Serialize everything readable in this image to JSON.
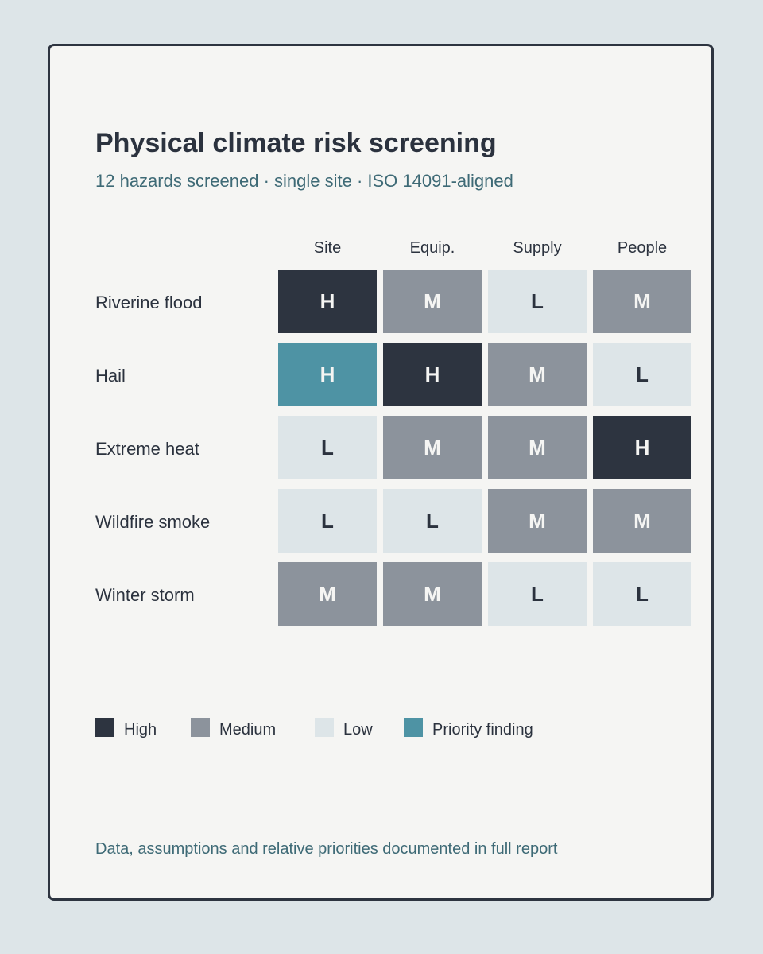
{
  "title": "Physical climate risk screening",
  "subtitle": "12 hazards screened · single site · ISO 14091-aligned",
  "footnote": "Data, assumptions and relative priorities documented in full report",
  "colors": {
    "background": "#dde5e8",
    "card": "#f5f5f3",
    "high": "#2d3440",
    "medium": "#8c939c",
    "low": "#dde5e8",
    "priority": "#4e93a4",
    "text_dark": "#2b323e",
    "text_light": "#f5f5f3",
    "text_accent": "#3e6a76"
  },
  "chart_data": {
    "type": "heatmap",
    "title": "Physical climate risk screening",
    "columns": [
      "Site",
      "Equip.",
      "Supply",
      "People"
    ],
    "rows": [
      "Riverine flood",
      "Hail",
      "Extreme heat",
      "Wildfire smoke",
      "Winter storm"
    ],
    "values": [
      [
        "H",
        "M",
        "L",
        "M"
      ],
      [
        "H",
        "H",
        "M",
        "L"
      ],
      [
        "L",
        "M",
        "M",
        "H"
      ],
      [
        "L",
        "L",
        "M",
        "M"
      ],
      [
        "M",
        "M",
        "L",
        "L"
      ]
    ],
    "priority_cells": [
      [
        1,
        0
      ]
    ],
    "legend": [
      {
        "key": "high",
        "label": "High"
      },
      {
        "key": "medium",
        "label": "Medium"
      },
      {
        "key": "low",
        "label": "Low"
      },
      {
        "key": "priority",
        "label": "Priority finding"
      }
    ],
    "legend_position": "bottom-left"
  }
}
